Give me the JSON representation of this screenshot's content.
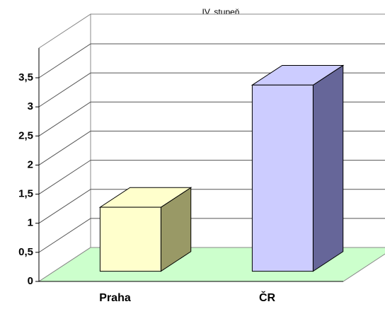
{
  "chart_data": {
    "type": "bar3d",
    "title": "IV. stupeň",
    "categories": [
      "Praha",
      "ČR"
    ],
    "values": [
      1.1,
      3.2
    ],
    "colors": [
      "#ffffcc",
      "#ccccff"
    ],
    "side_colors": [
      "#999966",
      "#666699"
    ],
    "floor_color": "#ccffcc",
    "ylim": [
      0,
      3.5
    ],
    "yticks": [
      0,
      {
        "value": 0.5,
        "label": "0,5"
      },
      1,
      {
        "value": 1.5,
        "label": "1,5"
      },
      2,
      {
        "value": 2.5,
        "label": "2,5"
      },
      3,
      {
        "value": 3.5,
        "label": "3,5"
      }
    ],
    "grid": true
  }
}
